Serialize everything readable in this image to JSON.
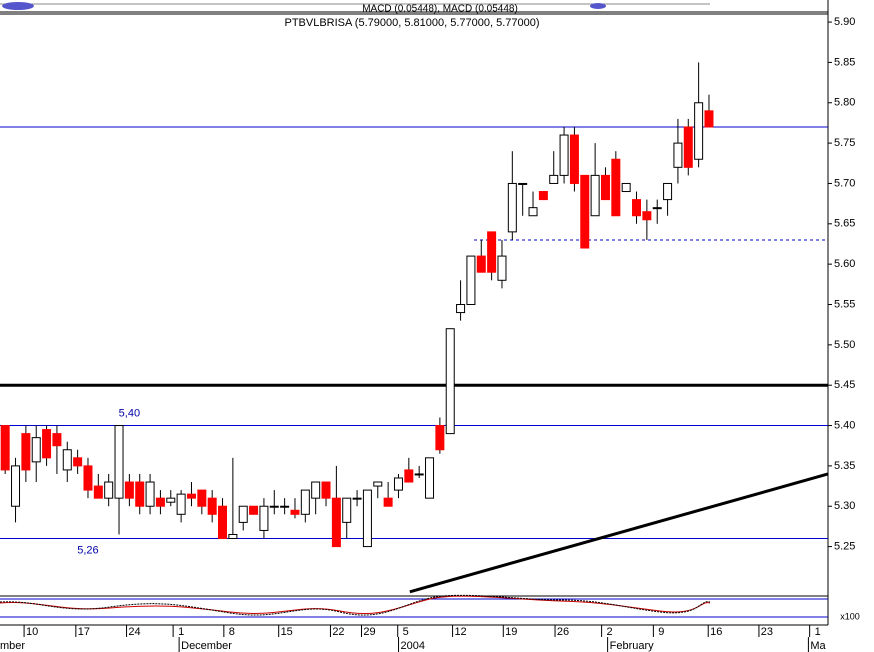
{
  "chart_data": {
    "type": "candlestick",
    "title": "PTBVLBRISA (5.79000, 5.81000, 5.77000, 5.77000)",
    "indicator_label": "MACD (0.05448), MACD (0.05448)",
    "scale_label": "x100",
    "open": [
      5.4,
      5.3,
      5.39,
      5.355,
      5.395,
      5.39,
      5.345,
      5.36,
      5.35,
      5.325,
      5.31,
      5.31,
      5.33,
      5.33,
      5.3,
      5.31,
      5.305,
      5.29,
      5.315,
      5.32,
      5.31,
      5.3,
      5.26,
      5.28,
      5.3,
      5.27,
      5.3,
      5.3,
      5.295,
      5.29,
      5.31,
      5.33,
      5.31,
      5.28,
      5.31,
      5.25,
      5.325,
      5.31,
      5.32,
      5.345,
      5.34,
      5.31,
      5.4,
      5.39,
      5.54,
      5.55,
      5.61,
      5.64,
      5.58,
      5.64,
      5.7,
      5.66,
      5.69,
      5.7,
      5.71,
      5.76,
      5.71,
      5.66,
      5.71,
      5.73,
      5.69,
      5.68,
      5.665,
      5.67,
      5.68,
      5.72,
      5.77,
      5.73,
      5.79
    ],
    "high": [
      5.4,
      5.36,
      5.4,
      5.4,
      5.4,
      5.4,
      5.38,
      5.37,
      5.36,
      5.34,
      5.34,
      5.4,
      5.34,
      5.34,
      5.34,
      5.32,
      5.32,
      5.32,
      5.33,
      5.32,
      5.32,
      5.31,
      5.36,
      5.3,
      5.3,
      5.31,
      5.32,
      5.31,
      5.31,
      5.32,
      5.33,
      5.33,
      5.35,
      5.31,
      5.32,
      5.32,
      5.33,
      5.33,
      5.34,
      5.36,
      5.35,
      5.36,
      5.41,
      5.52,
      5.58,
      5.61,
      5.63,
      5.64,
      5.63,
      5.74,
      5.7,
      5.69,
      5.69,
      5.74,
      5.77,
      5.77,
      5.71,
      5.75,
      5.72,
      5.74,
      5.7,
      5.69,
      5.68,
      5.68,
      5.7,
      5.78,
      5.78,
      5.85,
      5.81
    ],
    "low": [
      5.34,
      5.28,
      5.33,
      5.33,
      5.35,
      5.34,
      5.33,
      5.34,
      5.31,
      5.31,
      5.3,
      5.265,
      5.3,
      5.29,
      5.29,
      5.29,
      5.3,
      5.28,
      5.3,
      5.29,
      5.28,
      5.26,
      5.26,
      5.27,
      5.29,
      5.26,
      5.29,
      5.29,
      5.285,
      5.28,
      5.29,
      5.3,
      5.25,
      5.26,
      5.3,
      5.25,
      5.31,
      5.3,
      5.31,
      5.33,
      5.335,
      5.31,
      5.365,
      5.39,
      5.53,
      5.55,
      5.59,
      5.58,
      5.57,
      5.63,
      5.66,
      5.66,
      5.68,
      5.7,
      5.7,
      5.69,
      5.62,
      5.66,
      5.68,
      5.66,
      5.69,
      5.65,
      5.63,
      5.65,
      5.66,
      5.7,
      5.71,
      5.72,
      5.77
    ],
    "close": [
      5.345,
      5.35,
      5.345,
      5.385,
      5.36,
      5.375,
      5.37,
      5.35,
      5.32,
      5.31,
      5.33,
      5.4,
      5.31,
      5.3,
      5.33,
      5.3,
      5.31,
      5.315,
      5.31,
      5.3,
      5.29,
      5.26,
      5.265,
      5.3,
      5.29,
      5.3,
      5.3,
      5.3,
      5.29,
      5.32,
      5.33,
      5.31,
      5.25,
      5.31,
      5.31,
      5.32,
      5.33,
      5.3,
      5.335,
      5.33,
      5.34,
      5.36,
      5.37,
      5.52,
      5.55,
      5.61,
      5.59,
      5.59,
      5.61,
      5.7,
      5.7,
      5.67,
      5.68,
      5.71,
      5.76,
      5.7,
      5.62,
      5.71,
      5.68,
      5.66,
      5.7,
      5.66,
      5.655,
      5.67,
      5.7,
      5.75,
      5.72,
      5.8,
      5.77
    ],
    "up_color": "#ffffff",
    "down_color": "#ff0000",
    "ylim": [
      5.19,
      5.91
    ],
    "yticks": [
      5.25,
      5.3,
      5.35,
      5.4,
      5.45,
      5.5,
      5.55,
      5.6,
      5.65,
      5.7,
      5.75,
      5.8,
      5.85,
      5.9
    ],
    "ytick_labels": [
      "5.25",
      "5.30",
      "5.35",
      "5.40",
      "5.45",
      "5.50",
      "5.55",
      "5.60",
      "5.65",
      "5.70",
      "5.75",
      "5.80",
      "5.85",
      "5.90"
    ],
    "xlim": [
      -0.5,
      79.5
    ],
    "xticks": [
      {
        "value": 2.6,
        "label": "10"
      },
      {
        "value": 7.6,
        "label": "17"
      },
      {
        "value": 12.5,
        "label": "24"
      },
      {
        "value": 17,
        "label": "1"
      },
      {
        "value": 21.9,
        "label": "8"
      },
      {
        "value": 27.2,
        "label": "15"
      },
      {
        "value": 32.2,
        "label": "22"
      },
      {
        "value": 35.2,
        "label": "29"
      },
      {
        "value": 38.7,
        "label": "5"
      },
      {
        "value": 44,
        "label": "12"
      },
      {
        "value": 48.9,
        "label": "19"
      },
      {
        "value": 53.9,
        "label": "26"
      },
      {
        "value": 58.4,
        "label": "2"
      },
      {
        "value": 63.4,
        "label": "9"
      },
      {
        "value": 68.7,
        "label": "16"
      },
      {
        "value": 73.6,
        "label": "23"
      },
      {
        "value": 78.5,
        "label": "1"
      }
    ],
    "months": [
      {
        "value": -0.5,
        "label": "mber"
      },
      {
        "value": 17,
        "label": "December"
      },
      {
        "value": 38.2,
        "label": "2004"
      },
      {
        "value": 58.4,
        "label": "February"
      },
      {
        "value": 77.8,
        "label": "Ma"
      }
    ],
    "hlines": [
      {
        "value": 5.77,
        "color": "#0000cc",
        "width": 1
      },
      {
        "value": 5.4,
        "color": "#0000cc",
        "width": 1
      },
      {
        "value": 5.26,
        "color": "#0000cc",
        "width": 1
      },
      {
        "value": 5.45,
        "color": "#000000",
        "width": 3
      }
    ],
    "dashed_line": {
      "value": 5.63,
      "from": 45.3,
      "color": "#0000cc"
    },
    "trendline": {
      "x": [
        39.1,
        79.5
      ],
      "y": [
        5.194,
        5.34
      ],
      "color": "#000000"
    },
    "annotations": [
      {
        "text": "5,40",
        "x": 12,
        "y": 5.415
      },
      {
        "text": "5,26",
        "x": 8,
        "y": 5.245
      }
    ]
  }
}
